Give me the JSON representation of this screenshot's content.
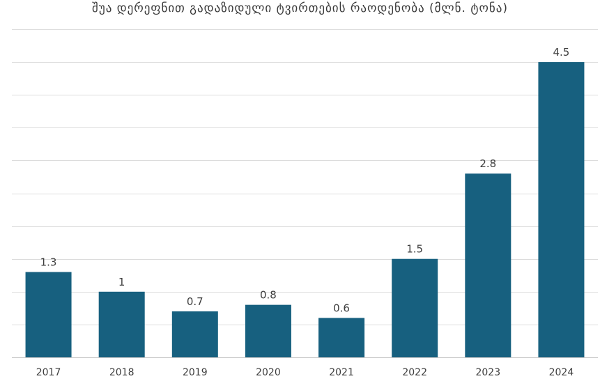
{
  "chart_data": {
    "type": "bar",
    "title": "შუა დერეფნით გადაზიდული ტვირთების რაოდენობა (მლნ. ტონა)",
    "categories": [
      "2017",
      "2018",
      "2019",
      "2020",
      "2021",
      "2022",
      "2023",
      "2024"
    ],
    "values": [
      1.3,
      1,
      0.7,
      0.8,
      0.6,
      1.5,
      2.8,
      4.5
    ],
    "data_labels": [
      "1.3",
      "1",
      "0.7",
      "0.8",
      "0.6",
      "1.5",
      "2.8",
      "4.5"
    ],
    "xlabel": "",
    "ylabel": "",
    "ylim": [
      0,
      5
    ],
    "grid": true,
    "legend": "none",
    "colors": {
      "bar": "#17607f",
      "grid": "#dcdcdc",
      "text": "#3d3d3d"
    }
  }
}
